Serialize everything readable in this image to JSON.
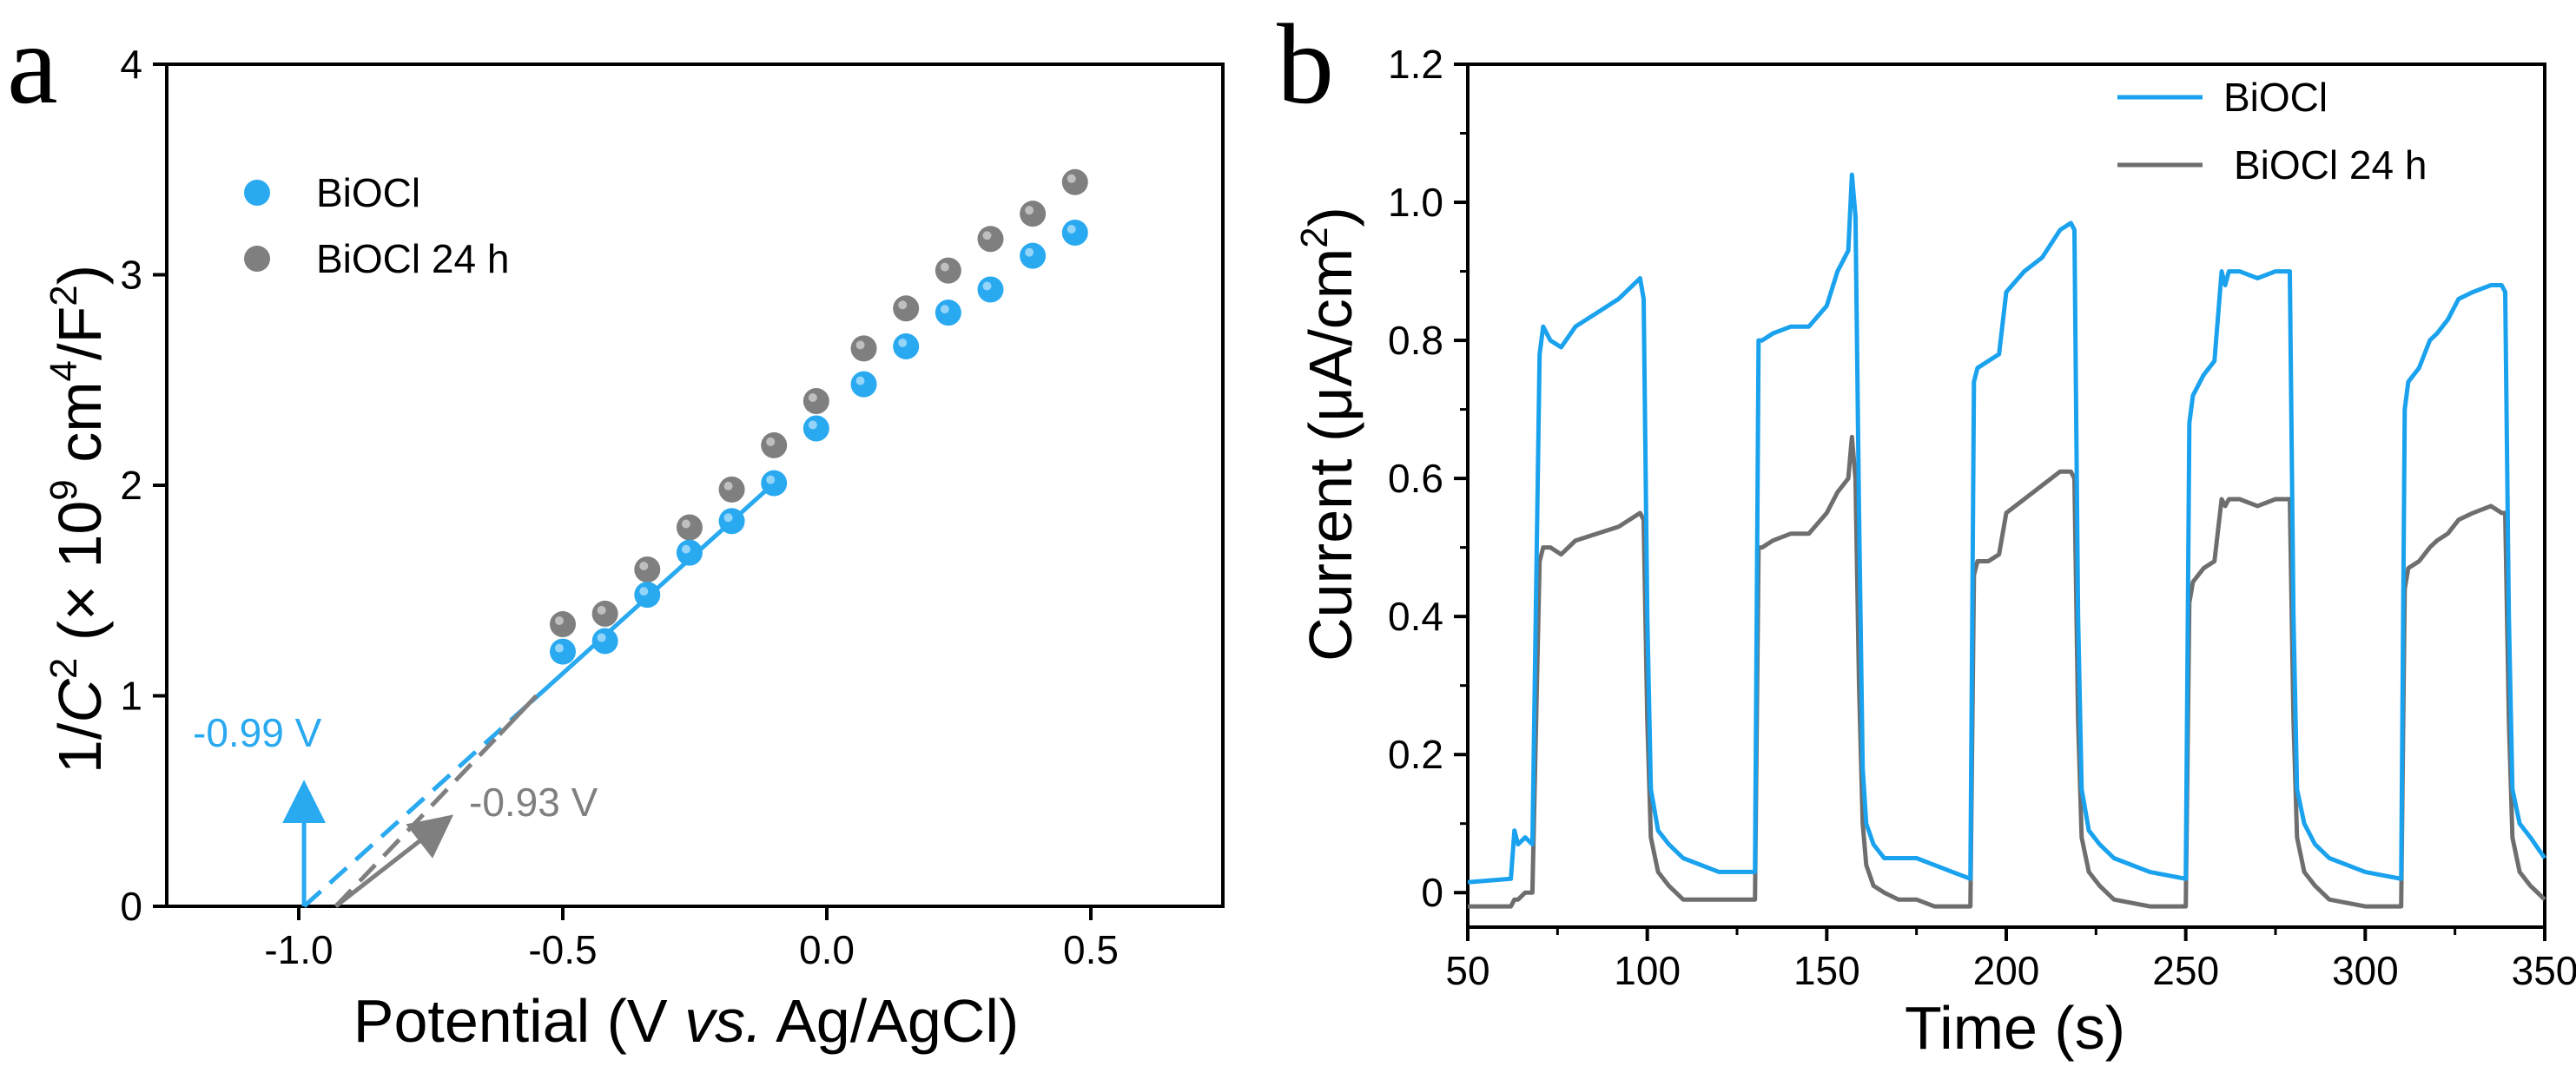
{
  "chart_data": [
    {
      "panel": "a",
      "type": "scatter",
      "xlabel": "Potential (V vs. Ag/AgCl)",
      "xlabel_parts": {
        "prefix": "Potential (V ",
        "italic": "vs.",
        "suffix": " Ag/AgCl)"
      },
      "ylabel": "1/C2 (× 109 cm4/F2)",
      "ylabel_parts": {
        "p1": "1/",
        "italic": "C",
        "sup1": "2",
        "p2": " (× 10",
        "sup2": "9",
        "p3": " cm",
        "sup3": "4",
        "p4": "/F",
        "sup4": "2",
        "p5": ")"
      },
      "xlim": [
        -1.25,
        0.75
      ],
      "ylim": [
        0,
        4
      ],
      "xticks": [
        -1.0,
        -0.5,
        0.0,
        0.5
      ],
      "xtick_labels": [
        "-1.0",
        "-0.5",
        "0.0",
        "0.5"
      ],
      "yticks": [
        0,
        1,
        2,
        3,
        4
      ],
      "ytick_labels": [
        "0",
        "1",
        "2",
        "3",
        "4"
      ],
      "legend_position": "top-left",
      "series": [
        {
          "name": "BiOCl",
          "color": "#29a9f0",
          "x": [
            -0.5,
            -0.42,
            -0.34,
            -0.26,
            -0.18,
            -0.1,
            -0.02,
            0.07,
            0.15,
            0.23,
            0.31,
            0.39,
            0.47
          ],
          "y": [
            1.21,
            1.26,
            1.48,
            1.68,
            1.83,
            2.01,
            2.27,
            2.48,
            2.66,
            2.82,
            2.93,
            3.09,
            3.2
          ],
          "fit": {
            "x": [
              -0.99,
              -0.1
            ],
            "y": [
              0.0,
              2.01
            ],
            "dashed_until_x": -0.56
          },
          "flat_band": -0.99,
          "flat_band_label": "-0.99 V"
        },
        {
          "name": "BiOCl 24 h",
          "color": "#7f7f7f",
          "x": [
            -0.5,
            -0.42,
            -0.34,
            -0.26,
            -0.18,
            -0.1,
            -0.02,
            0.07,
            0.15,
            0.23,
            0.31,
            0.39,
            0.47
          ],
          "y": [
            1.34,
            1.39,
            1.6,
            1.8,
            1.98,
            2.19,
            2.4,
            2.65,
            2.84,
            3.02,
            3.17,
            3.29,
            3.44
          ],
          "fit": {
            "x": [
              -0.93,
              -0.55
            ],
            "y": [
              0.0,
              1.0
            ],
            "dashed_until_x": -0.62
          },
          "flat_band": -0.93,
          "flat_band_label": "-0.93 V"
        }
      ]
    },
    {
      "panel": "b",
      "type": "line",
      "xlabel": "Time (s)",
      "ylabel": "Current (μA/cm2)",
      "ylabel_parts": {
        "prefix": "Current (μA/cm",
        "sup": "2",
        "suffix": ")"
      },
      "xlim": [
        50,
        350
      ],
      "ylim": [
        -0.05,
        1.2
      ],
      "xticks": [
        50,
        100,
        150,
        200,
        250,
        300,
        350
      ],
      "xtick_labels": [
        "50",
        "100",
        "150",
        "200",
        "250",
        "300",
        "350"
      ],
      "yticks": [
        0,
        0.2,
        0.4,
        0.6,
        0.8,
        1.0,
        1.2
      ],
      "ytick_labels": [
        "0",
        "0.2",
        "0.4",
        "0.6",
        "0.8",
        "1.0",
        "1.2"
      ],
      "legend_position": "top-right",
      "series": [
        {
          "name": "BiOCl",
          "color": "#1aa2ee",
          "x": [
            50,
            62,
            63,
            64,
            66,
            68,
            70,
            71,
            73,
            76,
            80,
            86,
            92,
            98,
            99,
            100,
            101,
            103,
            106,
            110,
            120,
            130,
            131,
            132,
            135,
            140,
            145,
            150,
            153,
            156,
            157,
            158,
            159,
            160,
            161,
            163,
            166,
            170,
            175,
            180,
            185,
            190,
            191,
            192,
            195,
            198,
            200,
            205,
            210,
            215,
            218,
            219,
            220,
            221,
            223,
            226,
            230,
            240,
            250,
            251,
            252,
            255,
            258,
            260,
            261,
            262,
            265,
            270,
            275,
            279,
            280,
            281,
            283,
            286,
            290,
            300,
            310,
            311,
            312,
            315,
            318,
            320,
            323,
            326,
            330,
            335,
            338,
            339,
            340,
            341,
            343,
            346,
            350
          ],
          "y": [
            0.015,
            0.02,
            0.09,
            0.07,
            0.08,
            0.07,
            0.78,
            0.82,
            0.8,
            0.79,
            0.82,
            0.84,
            0.86,
            0.89,
            0.86,
            0.4,
            0.15,
            0.09,
            0.07,
            0.05,
            0.03,
            0.03,
            0.8,
            0.8,
            0.81,
            0.82,
            0.82,
            0.85,
            0.9,
            0.93,
            1.04,
            0.98,
            0.55,
            0.18,
            0.1,
            0.07,
            0.05,
            0.05,
            0.05,
            0.04,
            0.03,
            0.02,
            0.74,
            0.76,
            0.77,
            0.78,
            0.87,
            0.9,
            0.92,
            0.96,
            0.97,
            0.96,
            0.4,
            0.15,
            0.09,
            0.07,
            0.05,
            0.03,
            0.02,
            0.68,
            0.72,
            0.75,
            0.77,
            0.9,
            0.88,
            0.9,
            0.9,
            0.89,
            0.9,
            0.9,
            0.4,
            0.15,
            0.1,
            0.07,
            0.05,
            0.03,
            0.02,
            0.7,
            0.74,
            0.76,
            0.8,
            0.81,
            0.83,
            0.86,
            0.87,
            0.88,
            0.88,
            0.87,
            0.4,
            0.15,
            0.1,
            0.08,
            0.05
          ]
        },
        {
          "name": "BiOCl 24 h",
          "color": "#6e6e6e",
          "x": [
            50,
            62,
            63,
            64,
            66,
            68,
            70,
            71,
            73,
            76,
            80,
            86,
            92,
            98,
            99,
            100,
            101,
            103,
            106,
            110,
            120,
            130,
            131,
            132,
            135,
            140,
            145,
            150,
            153,
            156,
            157,
            158,
            159,
            160,
            161,
            163,
            166,
            170,
            175,
            180,
            185,
            190,
            191,
            192,
            195,
            198,
            200,
            205,
            210,
            215,
            218,
            219,
            220,
            221,
            223,
            226,
            230,
            240,
            250,
            251,
            252,
            255,
            258,
            260,
            261,
            262,
            265,
            270,
            275,
            279,
            280,
            281,
            283,
            286,
            290,
            300,
            310,
            311,
            312,
            315,
            318,
            320,
            323,
            326,
            330,
            335,
            338,
            339,
            340,
            341,
            343,
            346,
            350
          ],
          "y": [
            -0.02,
            -0.02,
            -0.01,
            -0.01,
            0.0,
            0.0,
            0.48,
            0.5,
            0.5,
            0.49,
            0.51,
            0.52,
            0.53,
            0.55,
            0.54,
            0.25,
            0.08,
            0.03,
            0.01,
            -0.01,
            -0.01,
            -0.01,
            0.5,
            0.5,
            0.51,
            0.52,
            0.52,
            0.55,
            0.58,
            0.6,
            0.66,
            0.6,
            0.3,
            0.1,
            0.04,
            0.01,
            0.0,
            -0.01,
            -0.01,
            -0.02,
            -0.02,
            -0.02,
            0.46,
            0.48,
            0.48,
            0.49,
            0.55,
            0.57,
            0.59,
            0.61,
            0.61,
            0.6,
            0.25,
            0.08,
            0.03,
            0.01,
            -0.01,
            -0.02,
            -0.02,
            0.42,
            0.45,
            0.47,
            0.48,
            0.57,
            0.56,
            0.57,
            0.57,
            0.56,
            0.57,
            0.57,
            0.25,
            0.08,
            0.03,
            0.01,
            -0.01,
            -0.02,
            -0.02,
            0.44,
            0.47,
            0.48,
            0.5,
            0.51,
            0.52,
            0.54,
            0.55,
            0.56,
            0.55,
            0.55,
            0.25,
            0.08,
            0.03,
            0.01,
            -0.01
          ]
        }
      ]
    }
  ]
}
